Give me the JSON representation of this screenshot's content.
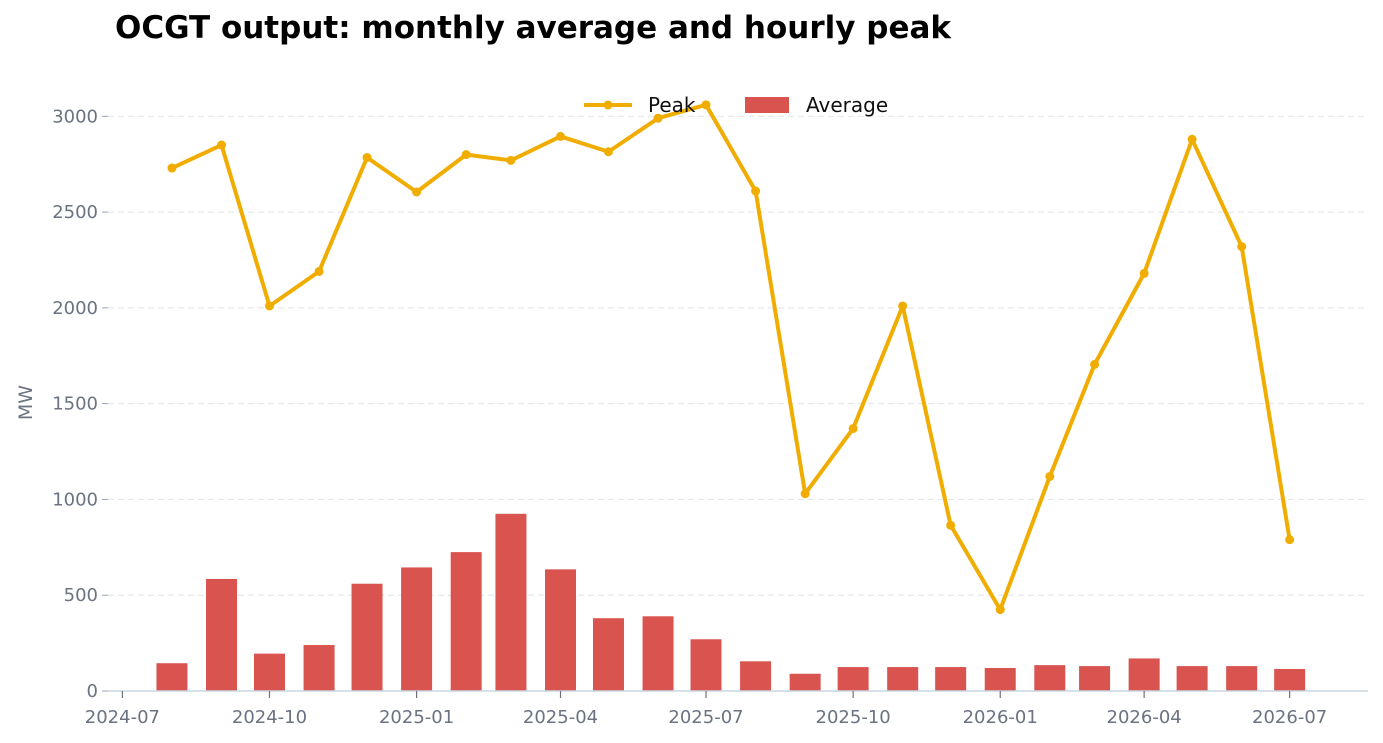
{
  "chart_data": {
    "type": "bar+line",
    "title": "OCGT output: monthly average and hourly peak",
    "ylabel": "MW",
    "xlabel": "",
    "ylim": [
      0,
      3200
    ],
    "yticks": [
      0,
      500,
      1000,
      1500,
      2000,
      2500,
      3000
    ],
    "xticks": [
      "2024-07",
      "2024-10",
      "2025-01",
      "2025-04",
      "2025-07",
      "2025-10",
      "2026-01",
      "2026-04",
      "2026-07"
    ],
    "xlim": [
      "2024-06-22",
      "2026-08-19"
    ],
    "grid": "horizontal dashed",
    "legend": {
      "position": "top-center",
      "entries": [
        "Peak",
        "Average"
      ]
    },
    "x": [
      "2024-08-01",
      "2024-09-01",
      "2024-10-01",
      "2024-11-01",
      "2024-12-01",
      "2025-01-01",
      "2025-02-01",
      "2025-03-01",
      "2025-04-01",
      "2025-05-01",
      "2025-06-01",
      "2025-07-01",
      "2025-08-01",
      "2025-09-01",
      "2025-10-01",
      "2025-11-01",
      "2025-12-01",
      "2026-01-01",
      "2026-02-01",
      "2026-03-01",
      "2026-04-01",
      "2026-05-01",
      "2026-06-01",
      "2026-07-01"
    ],
    "series": [
      {
        "name": "Peak",
        "type": "line",
        "color": "#f0ad00",
        "values": [
          2730,
          2850,
          2010,
          2190,
          2785,
          2605,
          2800,
          2770,
          2895,
          2815,
          2990,
          3060,
          2610,
          1030,
          1370,
          2010,
          865,
          425,
          1120,
          1705,
          2180,
          2880,
          2320,
          790
        ]
      },
      {
        "name": "Average",
        "type": "bar",
        "color": "#d9534f",
        "values": [
          145,
          585,
          195,
          240,
          560,
          645,
          725,
          925,
          635,
          380,
          390,
          270,
          155,
          90,
          125,
          125,
          125,
          120,
          135,
          130,
          170,
          130,
          130,
          115
        ]
      }
    ]
  }
}
